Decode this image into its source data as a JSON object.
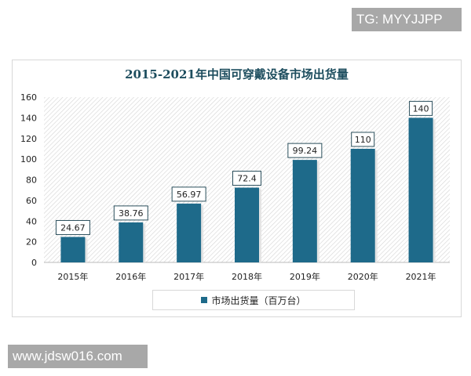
{
  "watermarks": {
    "top": "TG: MYYJJPP",
    "bottom": "www.jdsw016.com"
  },
  "colors": {
    "bar": "#1e6a8a",
    "title": "#1d4d5e"
  },
  "chart_data": {
    "type": "bar",
    "title": "2015-2021年中国可穿戴设备市场出货量",
    "categories": [
      "2015年",
      "2016年",
      "2017年",
      "2018年",
      "2019年",
      "2020年",
      "2021年"
    ],
    "series": [
      {
        "name": "市场出货量（百万台）",
        "values": [
          24.67,
          38.76,
          56.97,
          72.4,
          99.24,
          110,
          140
        ]
      }
    ],
    "data_labels": [
      "24.67",
      "38.76",
      "56.97",
      "72.4",
      "99.24",
      "110",
      "140"
    ],
    "yticks": [
      0,
      20,
      40,
      60,
      80,
      100,
      120,
      140,
      160
    ],
    "ylim": [
      0,
      160
    ],
    "xlabel": "",
    "ylabel": "",
    "grid": false,
    "legend": "bottom"
  }
}
